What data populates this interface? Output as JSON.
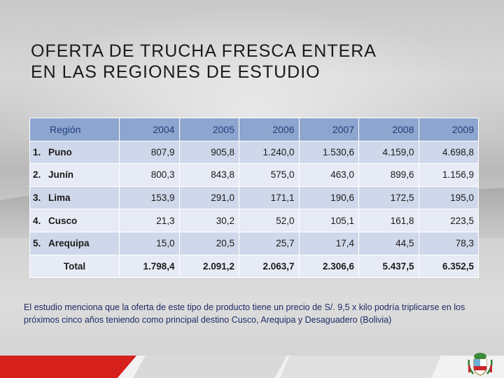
{
  "slide": {
    "title_line1": "OFERTA DE TRUCHA FRESCA ENTERA",
    "title_line2": "EN LAS REGIONES DE ESTUDIO",
    "note": "El estudio menciona que la oferta de este tipo de producto tiene un precio de S/. 9,5 x kilo podría triplicarse en los próximos cinco años teniendo como principal destino Cusco, Arequipa y Desaguadero (Bolivia)"
  },
  "table": {
    "region_header": "Región",
    "years": [
      "2004",
      "2005",
      "2006",
      "2007",
      "2008",
      "2009"
    ],
    "rows": [
      {
        "rank": "1.",
        "name": "Puno",
        "values": [
          "807,9",
          "905,8",
          "1.240,0",
          "1.530,6",
          "4.159,0",
          "4.698,8"
        ]
      },
      {
        "rank": "2.",
        "name": "Junín",
        "values": [
          "800,3",
          "843,8",
          "575,0",
          "463,0",
          "899,6",
          "1.156,9"
        ]
      },
      {
        "rank": "3.",
        "name": "Lima",
        "values": [
          "153,9",
          "291,0",
          "171,1",
          "190,6",
          "172,5",
          "195,0"
        ]
      },
      {
        "rank": "4.",
        "name": "Cusco",
        "values": [
          "21,3",
          "30,2",
          "52,0",
          "105,1",
          "161,8",
          "223,5"
        ]
      },
      {
        "rank": "5.",
        "name": "Arequipa",
        "values": [
          "15,0",
          "20,5",
          "25,7",
          "17,4",
          "44,5",
          "78,3"
        ]
      }
    ],
    "total": {
      "label": "Total",
      "values": [
        "1.798,4",
        "2.091,2",
        "2.063,7",
        "2.306,6",
        "5.437,5",
        "6.352,5"
      ]
    }
  },
  "colors": {
    "header_bg": "#8da6cf",
    "header_text": "#1f3d7a",
    "row_dark": "#cfd8ea",
    "row_light": "#e6ebf5",
    "brand_red": "#d5201c",
    "note_text": "#1f2a66"
  },
  "icons": {
    "crest": "peru-coat-of-arms-icon"
  }
}
